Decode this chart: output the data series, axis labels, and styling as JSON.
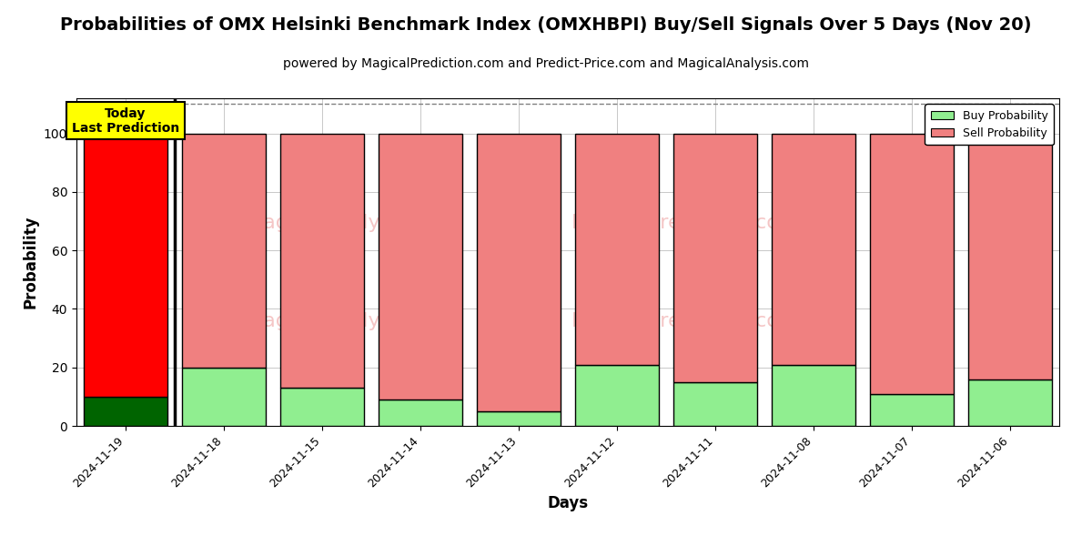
{
  "title": "Probabilities of OMX Helsinki Benchmark Index (OMXHBPI) Buy/Sell Signals Over 5 Days (Nov 20)",
  "subtitle": "powered by MagicalPrediction.com and Predict-Price.com and MagicalAnalysis.com",
  "xlabel": "Days",
  "ylabel": "Probability",
  "categories": [
    "2024-11-19",
    "2024-11-18",
    "2024-11-15",
    "2024-11-14",
    "2024-11-13",
    "2024-11-12",
    "2024-11-11",
    "2024-11-08",
    "2024-11-07",
    "2024-11-06"
  ],
  "buy_values": [
    10,
    20,
    13,
    9,
    5,
    21,
    15,
    21,
    11,
    16
  ],
  "sell_values": [
    90,
    80,
    87,
    91,
    95,
    79,
    85,
    79,
    89,
    84
  ],
  "today_buy_color": "#006400",
  "today_sell_color": "#ff0000",
  "buy_color": "#90ee90",
  "sell_color": "#f08080",
  "bar_edge_color": "#000000",
  "today_label_bg": "#ffff00",
  "today_label_text": "Today\nLast Prediction",
  "legend_buy_label": "Buy Probability",
  "legend_sell_label": "Sell Probability",
  "ylim": [
    0,
    112
  ],
  "yticks": [
    0,
    20,
    40,
    60,
    80,
    100
  ],
  "dashed_line_y": 110,
  "background_color": "#ffffff",
  "title_fontsize": 14,
  "subtitle_fontsize": 10
}
